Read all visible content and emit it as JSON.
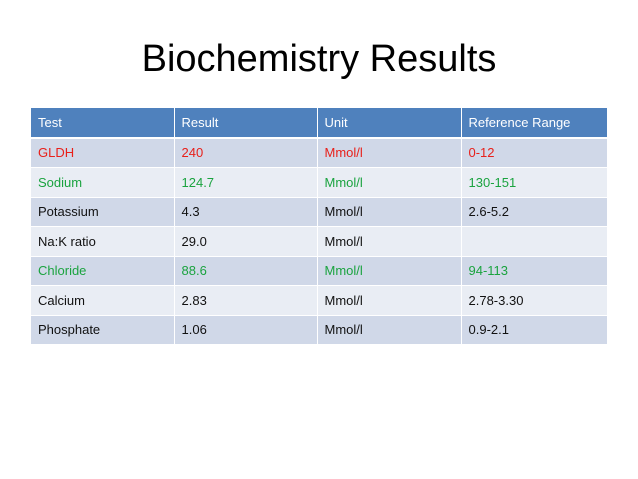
{
  "title": "Biochemistry Results",
  "colors": {
    "header_bg": "#4f81bd",
    "row_odd": "#d0d8e8",
    "row_even": "#e9edf4",
    "abnormal_red": "#e8201a",
    "highlight_green": "#1aa33f"
  },
  "table": {
    "headers": [
      "Test",
      "Result",
      "Unit",
      "Reference Range"
    ],
    "rows": [
      {
        "test": "GLDH",
        "result": "240",
        "unit": "Mmol/l",
        "range": "0-12",
        "tone": "red"
      },
      {
        "test": "Sodium",
        "result": "124.7",
        "unit": "Mmol/l",
        "range": "130-151",
        "tone": "green"
      },
      {
        "test": "Potassium",
        "result": "4.3",
        "unit": "Mmol/l",
        "range": "2.6-5.2",
        "tone": "black"
      },
      {
        "test": "Na:K ratio",
        "result": "29.0",
        "unit": "Mmol/l",
        "range": "",
        "tone": "black"
      },
      {
        "test": "Chloride",
        "result": "88.6",
        "unit": "Mmol/l",
        "range": "94-113",
        "tone": "green"
      },
      {
        "test": "Calcium",
        "result": "2.83",
        "unit": "Mmol/l",
        "range": "2.78-3.30",
        "tone": "black"
      },
      {
        "test": "Phosphate",
        "result": "1.06",
        "unit": "Mmol/l",
        "range": "0.9-2.1",
        "tone": "black"
      }
    ]
  }
}
